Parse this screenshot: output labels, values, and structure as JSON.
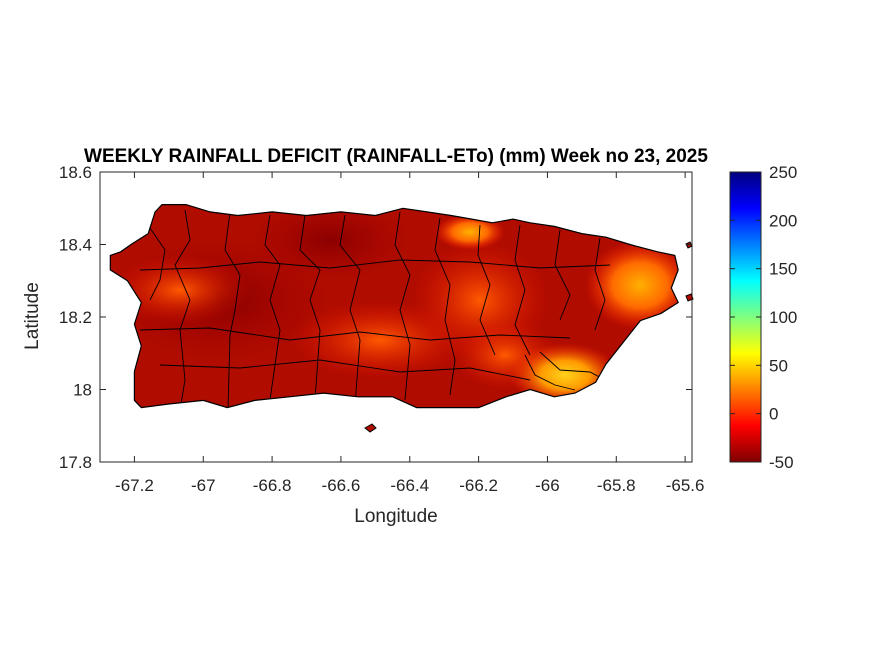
{
  "map": {
    "title": "WEEKLY RAINFALL DEFICIT (RAINFALL-ETo) (mm) Week no 23, 2025",
    "region": "Puerto Rico",
    "xlabel": "Longitude",
    "ylabel": "Latitude",
    "xlim": [
      -67.3,
      -65.58
    ],
    "ylim": [
      17.8,
      18.6
    ],
    "xticks": [
      -67.2,
      -67,
      -66.8,
      -66.6,
      -66.4,
      -66.2,
      -66,
      -65.8,
      -65.6
    ],
    "xtick_labels": [
      "-67.2",
      "-67",
      "-66.8",
      "-66.6",
      "-66.4",
      "-66.2",
      "-66",
      "-65.8",
      "-65.6"
    ],
    "yticks": [
      17.8,
      18,
      18.2,
      18.4,
      18.6
    ],
    "ytick_labels": [
      "17.8",
      "18",
      "18.2",
      "18.4",
      "18.6"
    ],
    "colormap": "jet",
    "colorbar": {
      "range": [
        -50,
        250
      ],
      "ticks": [
        -50,
        0,
        50,
        100,
        150,
        200,
        250
      ],
      "tick_labels": [
        "-50",
        "0",
        "50",
        "100",
        "150",
        "200",
        "250"
      ]
    },
    "dominant_value_range": [
      -50,
      0
    ],
    "wet_area_values": [
      {
        "lon": -65.96,
        "lat": 18.02,
        "value": 55
      },
      {
        "lon": -65.82,
        "lat": 18.26,
        "value": 20
      },
      {
        "lon": -66.22,
        "lat": 18.44,
        "value": 10
      },
      {
        "lon": -66.18,
        "lat": 18.1,
        "value": 5
      }
    ]
  }
}
